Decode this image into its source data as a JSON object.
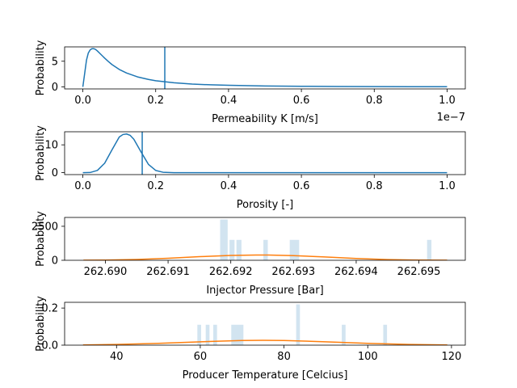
{
  "chart_data": [
    {
      "type": "line",
      "xlabel": "Permeability K [m/s]",
      "ylabel": "Probability",
      "offset_text": "1e−7",
      "xlim": [
        -0.05,
        1.05
      ],
      "ylim": [
        -0.4,
        7.8
      ],
      "xticks": [
        0.0,
        0.2,
        0.4,
        0.6,
        0.8,
        1.0
      ],
      "xtick_labels": [
        "0.0",
        "0.2",
        "0.4",
        "0.6",
        "0.8",
        "1.0"
      ],
      "yticks": [
        0,
        5
      ],
      "ytick_labels": [
        "0",
        "5"
      ],
      "line_color": "#1f77b4",
      "vline_x": 0.225,
      "series": [
        {
          "x": [
            0.0,
            0.005,
            0.01,
            0.015,
            0.02,
            0.025,
            0.03,
            0.035,
            0.04,
            0.05,
            0.06,
            0.07,
            0.08,
            0.1,
            0.12,
            0.15,
            0.18,
            0.2,
            0.25,
            0.3,
            0.35,
            0.4,
            0.5,
            0.6,
            0.7,
            0.8,
            0.9,
            1.0
          ],
          "y": [
            0.0,
            2.6,
            5.2,
            6.6,
            7.2,
            7.45,
            7.45,
            7.3,
            7.0,
            6.3,
            5.6,
            4.95,
            4.35,
            3.4,
            2.7,
            1.95,
            1.45,
            1.2,
            0.8,
            0.55,
            0.4,
            0.3,
            0.18,
            0.12,
            0.08,
            0.06,
            0.04,
            0.03
          ]
        }
      ]
    },
    {
      "type": "line",
      "xlabel": "Porosity [-]",
      "ylabel": "Probability",
      "xlim": [
        -0.05,
        1.05
      ],
      "ylim": [
        -0.7,
        14.7
      ],
      "xticks": [
        0.0,
        0.2,
        0.4,
        0.6,
        0.8,
        1.0
      ],
      "xtick_labels": [
        "0.0",
        "0.2",
        "0.4",
        "0.6",
        "0.8",
        "1.0"
      ],
      "yticks": [
        0,
        10
      ],
      "ytick_labels": [
        "0",
        "10"
      ],
      "line_color": "#1f77b4",
      "vline_x": 0.163,
      "series": [
        {
          "x": [
            0.0,
            0.02,
            0.04,
            0.06,
            0.08,
            0.1,
            0.11,
            0.12,
            0.13,
            0.14,
            0.16,
            0.18,
            0.2,
            0.22,
            0.25,
            0.3,
            0.5,
            0.75,
            1.0
          ],
          "y": [
            0.0,
            0.05,
            0.8,
            3.4,
            8.2,
            12.8,
            13.7,
            13.9,
            13.4,
            12.0,
            7.4,
            3.0,
            0.8,
            0.15,
            0.0,
            0.0,
            0.0,
            0.0,
            0.0
          ]
        }
      ]
    },
    {
      "type": "bar",
      "xlabel": "Injector Pressure [Bar]",
      "ylabel": "Probability",
      "xlim": [
        262.68935,
        262.69574
      ],
      "ylim": [
        0,
        3150
      ],
      "xticks": [
        262.69,
        262.691,
        262.692,
        262.693,
        262.694,
        262.695
      ],
      "xtick_labels": [
        "262.690",
        "262.691",
        "262.692",
        "262.693",
        "262.694",
        "262.695"
      ],
      "yticks": [
        0,
        2500
      ],
      "ytick_labels": [
        "0",
        "2500"
      ],
      "bar_color": "#1f77b4",
      "bar_opacity": 0.2,
      "line_color": "#ff7f0e",
      "bars": [
        {
          "x0": 262.69183,
          "x1": 262.69195,
          "h": 3000
        },
        {
          "x0": 262.69198,
          "x1": 262.69206,
          "h": 1500
        },
        {
          "x0": 262.69209,
          "x1": 262.69217,
          "h": 1500
        },
        {
          "x0": 262.69252,
          "x1": 262.69259,
          "h": 1500
        },
        {
          "x0": 262.69294,
          "x1": 262.69309,
          "h": 1500
        },
        {
          "x0": 262.69513,
          "x1": 262.6952,
          "h": 1500
        }
      ],
      "series": [
        {
          "x": [
            262.68965,
            262.69,
            262.6905,
            262.691,
            262.6915,
            262.692,
            262.6924,
            262.6926,
            262.693,
            262.6935,
            262.694,
            262.6945,
            262.695,
            262.69545
          ],
          "y": [
            5,
            18,
            60,
            150,
            265,
            355,
            390,
            390,
            345,
            245,
            135,
            55,
            15,
            5
          ]
        }
      ]
    },
    {
      "type": "bar",
      "xlabel": "Producer Temperature [Celcius]",
      "ylabel": "Probability",
      "xlim": [
        27.6,
        123.3
      ],
      "ylim": [
        0,
        0.231
      ],
      "xticks": [
        40,
        60,
        80,
        100,
        120
      ],
      "xtick_labels": [
        "40",
        "60",
        "80",
        "100",
        "120"
      ],
      "yticks": [
        0.0,
        0.2
      ],
      "ytick_labels": [
        "0.0",
        "0.2"
      ],
      "bar_color": "#1f77b4",
      "bar_opacity": 0.2,
      "line_color": "#ff7f0e",
      "bars": [
        {
          "x0": 59.3,
          "x1": 60.2,
          "h": 0.11
        },
        {
          "x0": 61.3,
          "x1": 62.2,
          "h": 0.11
        },
        {
          "x0": 63.1,
          "x1": 64.0,
          "h": 0.11
        },
        {
          "x0": 67.4,
          "x1": 70.3,
          "h": 0.11
        },
        {
          "x0": 82.9,
          "x1": 83.8,
          "h": 0.22
        },
        {
          "x0": 93.8,
          "x1": 94.7,
          "h": 0.11
        },
        {
          "x0": 103.7,
          "x1": 104.6,
          "h": 0.11
        }
      ],
      "series": [
        {
          "x": [
            32.0,
            40,
            50,
            60,
            65,
            70,
            75,
            80,
            85,
            90,
            100,
            110,
            119
          ],
          "y": [
            0.001,
            0.004,
            0.01,
            0.018,
            0.022,
            0.025,
            0.026,
            0.025,
            0.022,
            0.018,
            0.01,
            0.004,
            0.001
          ]
        }
      ]
    }
  ]
}
